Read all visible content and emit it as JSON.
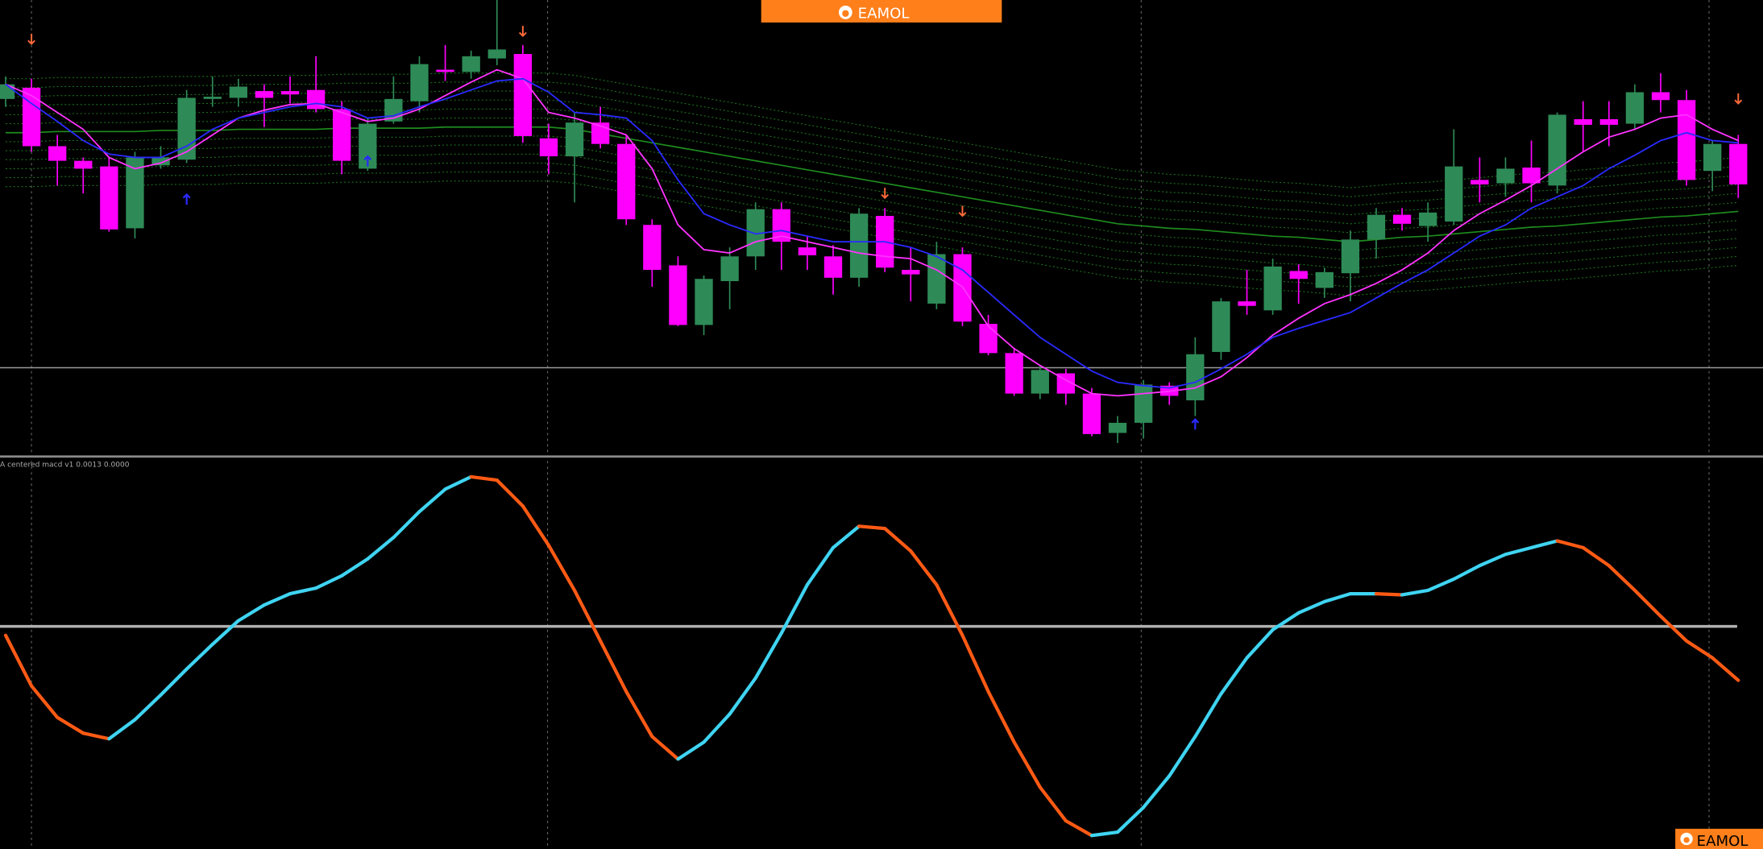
{
  "header": {
    "logo": "EAMOL"
  },
  "chart_data": [
    {
      "type": "candlestick",
      "up_color": "#2e8b57",
      "down_color": "#ff00ff",
      "ylim": [
        0,
        405
      ],
      "open": [
        317,
        327,
        275,
        262,
        257,
        202,
        258,
        263,
        317,
        318,
        324,
        324,
        325,
        308,
        255,
        297,
        315,
        343,
        341,
        353,
        357,
        282,
        266,
        296,
        277,
        205,
        169,
        116,
        155,
        177,
        219,
        185,
        177,
        158,
        213,
        165,
        135,
        179,
        117,
        91,
        55,
        73,
        55,
        20,
        29,
        62,
        49,
        92,
        137,
        129,
        164,
        149,
        162,
        192,
        214,
        204,
        208,
        245,
        242,
        256,
        240,
        299,
        299,
        295,
        323,
        316,
        253,
        277
      ],
      "close": [
        330,
        275,
        262,
        255,
        201,
        265,
        265,
        318,
        319,
        328,
        318,
        321,
        308,
        262,
        295,
        317,
        348,
        341,
        355,
        361,
        284,
        266,
        296,
        277,
        210,
        165,
        116,
        157,
        177,
        219,
        190,
        178,
        158,
        215,
        167,
        161,
        179,
        119,
        91,
        55,
        76,
        55,
        19,
        29,
        63,
        53,
        90,
        137,
        133,
        168,
        157,
        163,
        192,
        214,
        206,
        216,
        257,
        241,
        255,
        242,
        303,
        294,
        294,
        323,
        316,
        245,
        277,
        241
      ],
      "high": [
        337,
        335,
        285,
        265,
        265,
        270,
        275,
        325,
        337,
        335,
        330,
        337,
        355,
        315,
        300,
        337,
        355,
        365,
        360,
        405,
        365,
        295,
        305,
        310,
        285,
        210,
        177,
        160,
        185,
        225,
        225,
        195,
        187,
        220,
        220,
        185,
        190,
        185,
        125,
        95,
        80,
        77,
        60,
        35,
        67,
        65,
        105,
        140,
        165,
        175,
        170,
        167,
        200,
        220,
        220,
        225,
        290,
        265,
        265,
        280,
        305,
        315,
        315,
        330,
        340,
        325,
        280,
        285
      ],
      "low": [
        310,
        270,
        240,
        233,
        199,
        193,
        255,
        260,
        310,
        310,
        292,
        313,
        305,
        250,
        253,
        295,
        305,
        333,
        335,
        347,
        278,
        250,
        225,
        273,
        205,
        150,
        115,
        107,
        130,
        165,
        165,
        165,
        143,
        150,
        163,
        137,
        130,
        115,
        89,
        53,
        50,
        45,
        17,
        11,
        15,
        45,
        35,
        85,
        125,
        125,
        135,
        140,
        137,
        175,
        200,
        190,
        205,
        225,
        230,
        225,
        233,
        270,
        275,
        290,
        305,
        240,
        235,
        229
      ],
      "lines": [
        {
          "color": "#ff33ff",
          "values": [
            330,
            320,
            305,
            290,
            265,
            255,
            260,
            270,
            285,
            300,
            307,
            312,
            313,
            305,
            297,
            300,
            308,
            320,
            332,
            343,
            335,
            305,
            300,
            293,
            285,
            255,
            205,
            183,
            180,
            190,
            195,
            190,
            185,
            180,
            177,
            175,
            165,
            150,
            115,
            95,
            80,
            67,
            55,
            53,
            55,
            57,
            60,
            70,
            87,
            107,
            122,
            135,
            143,
            153,
            165,
            180,
            200,
            215,
            227,
            240,
            255,
            270,
            283,
            290,
            300,
            303,
            290,
            280
          ]
        },
        {
          "color": "#2a2aff",
          "values": [
            330,
            313,
            297,
            280,
            268,
            265,
            265,
            275,
            290,
            300,
            305,
            310,
            313,
            310,
            300,
            302,
            310,
            317,
            325,
            333,
            335,
            323,
            305,
            303,
            300,
            280,
            245,
            215,
            205,
            197,
            200,
            195,
            190,
            190,
            190,
            185,
            177,
            165,
            145,
            125,
            105,
            90,
            75,
            65,
            62,
            60,
            65,
            77,
            90,
            105,
            113,
            120,
            127,
            140,
            153,
            165,
            180,
            195,
            205,
            220,
            230,
            240,
            255,
            267,
            280,
            287,
            280,
            278
          ]
        }
      ],
      "envelope": {
        "color": "#1e8c1e",
        "band_color": "#1a6e1a",
        "center": [
          287,
          287,
          288,
          288,
          288,
          288,
          289,
          289,
          289,
          290,
          290,
          290,
          290,
          291,
          291,
          291,
          291,
          292,
          292,
          292,
          292,
          292,
          290,
          286,
          282,
          278,
          274,
          270,
          266,
          262,
          258,
          254,
          250,
          246,
          242,
          238,
          234,
          230,
          226,
          222,
          218,
          214,
          210,
          206,
          204,
          202,
          201,
          199,
          197,
          195,
          194,
          192,
          190,
          192,
          194,
          195,
          197,
          199,
          201,
          203,
          204,
          206,
          208,
          210,
          212,
          213,
          215,
          217
        ],
        "upper": [
          335,
          335,
          336,
          336,
          336,
          336,
          337,
          337,
          337,
          338,
          338,
          338,
          338,
          339,
          339,
          339,
          339,
          340,
          340,
          340,
          340,
          340,
          338,
          334,
          330,
          326,
          322,
          318,
          314,
          310,
          306,
          302,
          298,
          294,
          290,
          286,
          282,
          278,
          274,
          270,
          266,
          262,
          258,
          254,
          252,
          250,
          249,
          247,
          245,
          243,
          242,
          240,
          238,
          240,
          242,
          243,
          245,
          247,
          249,
          251,
          252,
          254,
          256,
          258,
          260,
          261,
          263,
          265
        ],
        "lower": [
          239,
          239,
          240,
          240,
          240,
          240,
          241,
          241,
          241,
          242,
          242,
          242,
          242,
          243,
          243,
          243,
          243,
          244,
          244,
          244,
          244,
          244,
          242,
          238,
          234,
          230,
          226,
          222,
          218,
          214,
          210,
          206,
          202,
          198,
          194,
          190,
          186,
          182,
          178,
          174,
          170,
          166,
          162,
          158,
          156,
          154,
          153,
          151,
          149,
          147,
          146,
          144,
          142,
          144,
          146,
          147,
          149,
          151,
          153,
          155,
          156,
          158,
          160,
          162,
          164,
          165,
          167,
          169
        ]
      },
      "down_arrows": {
        "color": "#ff6a3a",
        "values": [
          null,
          370,
          null,
          null,
          null,
          null,
          null,
          null,
          null,
          null,
          null,
          null,
          null,
          null,
          null,
          null,
          null,
          null,
          null,
          null,
          377,
          null,
          null,
          null,
          null,
          null,
          null,
          null,
          null,
          null,
          null,
          null,
          null,
          null,
          233,
          null,
          null,
          217,
          null,
          null,
          null,
          null,
          null,
          null,
          null,
          null,
          null,
          null,
          null,
          null,
          null,
          null,
          null,
          null,
          null,
          null,
          null,
          null,
          null,
          null,
          null,
          null,
          null,
          null,
          null,
          null,
          null,
          317
        ]
      },
      "up_arrows": {
        "color": "#2a2aff",
        "values": [
          null,
          null,
          null,
          null,
          null,
          null,
          null,
          228,
          null,
          null,
          null,
          null,
          null,
          null,
          262,
          null,
          null,
          null,
          null,
          null,
          null,
          null,
          null,
          null,
          null,
          null,
          null,
          null,
          null,
          null,
          null,
          null,
          null,
          null,
          null,
          null,
          null,
          null,
          null,
          null,
          null,
          null,
          null,
          null,
          null,
          null,
          28,
          null,
          null,
          null,
          null,
          null,
          null,
          null,
          null,
          null,
          null,
          null,
          null,
          null,
          null,
          null,
          null,
          null,
          null,
          null,
          null,
          null
        ]
      },
      "hline": 78
    },
    {
      "type": "line",
      "title": "A centered macd v1 0.0013 0.0000",
      "rising_color": "#3fd4f2",
      "falling_color": "#ff5a14",
      "ylim": [
        -198,
        152
      ],
      "zero_line": true,
      "values": [
        -8,
        -53,
        -81,
        -95,
        -100,
        -83,
        -61,
        -38,
        -16,
        5,
        19,
        29,
        34,
        45,
        60,
        79,
        102,
        122,
        133,
        130,
        107,
        72,
        32,
        -13,
        -58,
        -98,
        -118,
        -103,
        -78,
        -46,
        -6,
        37,
        70,
        89,
        87,
        67,
        37,
        -8,
        -58,
        -103,
        -143,
        -173,
        -186,
        -183,
        -161,
        -133,
        -98,
        -60,
        -28,
        -3,
        12,
        22,
        29,
        29,
        28,
        32,
        42,
        54,
        64,
        70,
        76,
        70,
        54,
        32,
        9,
        -13,
        -28,
        -48
      ]
    }
  ]
}
